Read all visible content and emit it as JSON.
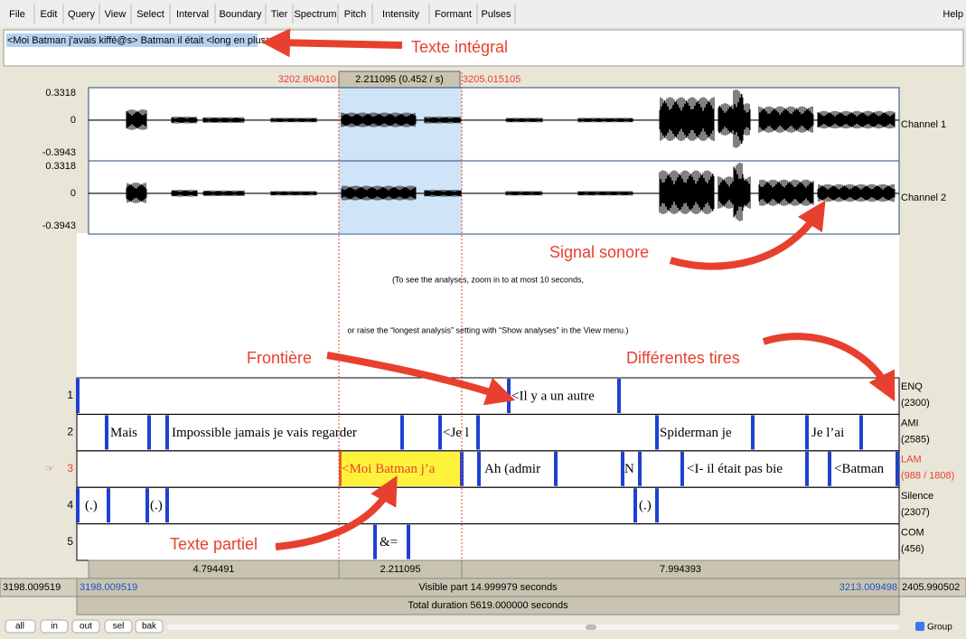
{
  "menu": [
    "File",
    "Edit",
    "Query",
    "View",
    "Select",
    "Interval",
    "Boundary",
    "Tier",
    "Spectrum",
    "Pitch",
    "Intensity",
    "Formant",
    "Pulses"
  ],
  "help": "Help",
  "text_box": "<Moi Batman j'avais kiffé@s> Batman il était <long en plus>.",
  "selection": {
    "start": "3202.804010",
    "duration": "2.211095 (0.452 / s)",
    "end": "3205.015105"
  },
  "channels": [
    {
      "name": "Channel 1",
      "max": "0.3318",
      "zero": "0",
      "min": "-0.3943"
    },
    {
      "name": "Channel 2",
      "max": "0.3318",
      "zero": "0",
      "min": "-0.3943"
    }
  ],
  "analysis_message": [
    "(To see the analyses, zoom in to at most 10 seconds,",
    "or raise the “longest analysis” setting with “Show analyses” in the View menu.)"
  ],
  "selected_marker": "☞",
  "tiers": [
    {
      "number": "1",
      "name": "ENQ",
      "count": "(2300)",
      "intervals": [
        "<Il y a un autre"
      ]
    },
    {
      "number": "2",
      "name": "AMI",
      "count": "(2585)",
      "intervals": [
        "Mais",
        "Impossible jamais je vais regarder",
        "<Je l",
        "Spiderman je",
        "Je l’ai"
      ]
    },
    {
      "number": "3",
      "name": "LAM",
      "count": "(988 / 1808)",
      "intervals": [
        "<Moi Batman j’a",
        "Ah (admir",
        "N",
        "<I- il était pas bie",
        "<Batman"
      ]
    },
    {
      "number": "4",
      "name": "Silence",
      "count": "(2307)",
      "intervals": [
        "(.)",
        "(.)",
        "(.)"
      ]
    },
    {
      "number": "5",
      "name": "COM",
      "count": "(456)",
      "intervals": [
        "&="
      ]
    }
  ],
  "durations": [
    "4.794491",
    "2.211095",
    "7.994393"
  ],
  "window": {
    "total_start": "3198.009519",
    "visible_start": "3198.009519",
    "visible": "Visible part 14.999979 seconds",
    "visible_end": "3213.009498",
    "total_end": "2405.990502"
  },
  "total_duration": "Total duration 5619.000000 seconds",
  "buttons": [
    "all",
    "in",
    "out",
    "sel",
    "bak"
  ],
  "group": "Group",
  "annotations": [
    "Texte intégral",
    "Signal sonore",
    "Frontière",
    "Différentes tires",
    "Texte partiel"
  ]
}
